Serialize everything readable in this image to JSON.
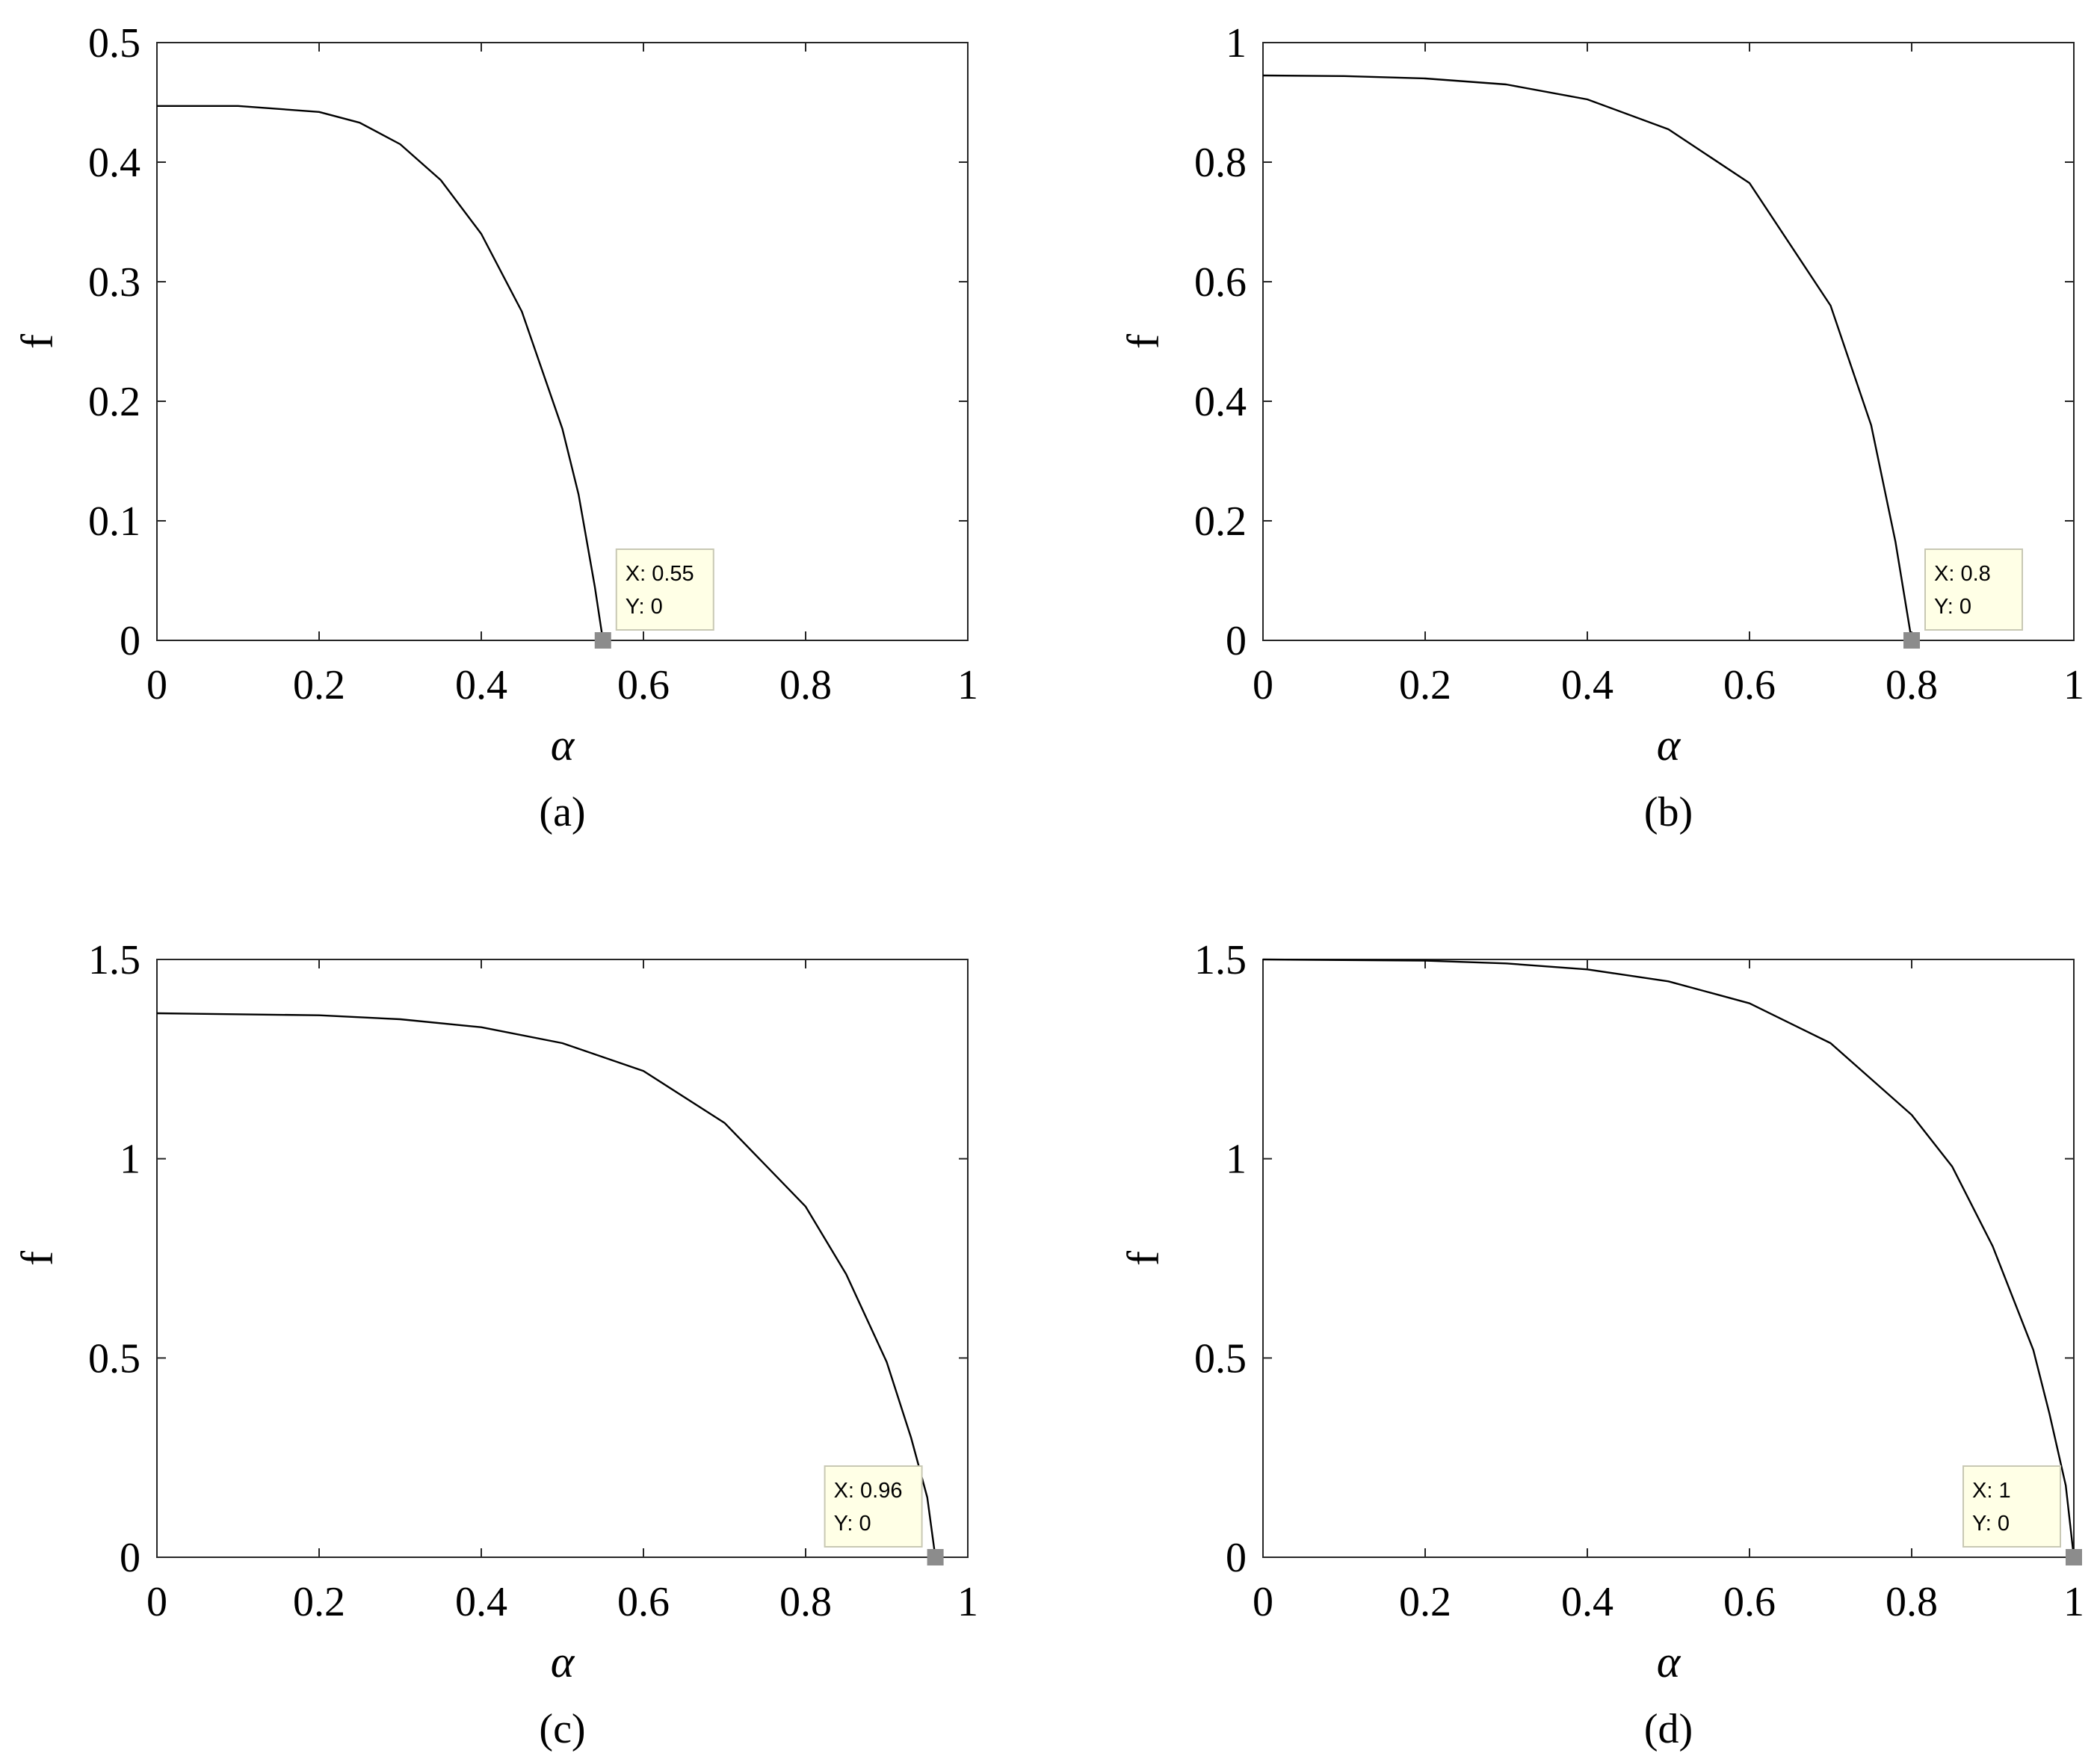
{
  "chart_data": [
    {
      "panel_label": "(a)",
      "type": "line",
      "xlabel": "α",
      "ylabel": "f",
      "xlim": [
        0,
        1
      ],
      "ylim": [
        0,
        0.5
      ],
      "xticks": [
        0,
        0.2,
        0.4,
        0.6,
        0.8,
        1
      ],
      "xtick_labels": [
        "0",
        "0.2",
        "0.4",
        "0.6",
        "0.8",
        "1"
      ],
      "yticks": [
        0,
        0.1,
        0.2,
        0.3,
        0.4,
        0.5
      ],
      "ytick_labels": [
        "0",
        "0.1",
        "0.2",
        "0.3",
        "0.4",
        "0.5"
      ],
      "grid": false,
      "color": "#000000",
      "x": [
        0,
        0.1,
        0.2,
        0.25,
        0.3,
        0.35,
        0.4,
        0.45,
        0.5,
        0.52,
        0.54,
        0.55
      ],
      "y": [
        0.447,
        0.447,
        0.442,
        0.433,
        0.415,
        0.385,
        0.34,
        0.275,
        0.177,
        0.122,
        0.045,
        0
      ],
      "datatip": {
        "x": 0.55,
        "y": 0,
        "lines": [
          "X: 0.55",
          "Y: 0"
        ]
      }
    },
    {
      "panel_label": "(b)",
      "type": "line",
      "xlabel": "α",
      "ylabel": "f",
      "xlim": [
        0,
        1
      ],
      "ylim": [
        0,
        1
      ],
      "xticks": [
        0,
        0.2,
        0.4,
        0.6,
        0.8,
        1
      ],
      "xtick_labels": [
        "0",
        "0.2",
        "0.4",
        "0.6",
        "0.8",
        "1"
      ],
      "yticks": [
        0,
        0.2,
        0.4,
        0.6,
        0.8,
        1
      ],
      "ytick_labels": [
        "0",
        "0.2",
        "0.4",
        "0.6",
        "0.8",
        "1"
      ],
      "grid": false,
      "color": "#000000",
      "x": [
        0,
        0.1,
        0.2,
        0.3,
        0.4,
        0.5,
        0.6,
        0.7,
        0.75,
        0.78,
        0.8
      ],
      "y": [
        0.945,
        0.944,
        0.94,
        0.93,
        0.905,
        0.855,
        0.765,
        0.56,
        0.36,
        0.165,
        0
      ],
      "datatip": {
        "x": 0.8,
        "y": 0,
        "lines": [
          "X: 0.8",
          "Y: 0"
        ]
      }
    },
    {
      "panel_label": "(c)",
      "type": "line",
      "xlabel": "α",
      "ylabel": "f",
      "xlim": [
        0,
        1
      ],
      "ylim": [
        0,
        1.5
      ],
      "xticks": [
        0,
        0.2,
        0.4,
        0.6,
        0.8,
        1
      ],
      "xtick_labels": [
        "0",
        "0.2",
        "0.4",
        "0.6",
        "0.8",
        "1"
      ],
      "yticks": [
        0,
        0.5,
        1,
        1.5
      ],
      "ytick_labels": [
        "0",
        "0.5",
        "1",
        "1.5"
      ],
      "grid": false,
      "color": "#000000",
      "x": [
        0,
        0.2,
        0.3,
        0.4,
        0.5,
        0.6,
        0.7,
        0.8,
        0.85,
        0.9,
        0.93,
        0.95,
        0.96
      ],
      "y": [
        1.365,
        1.36,
        1.35,
        1.33,
        1.29,
        1.22,
        1.09,
        0.88,
        0.71,
        0.49,
        0.3,
        0.15,
        0
      ],
      "datatip": {
        "x": 0.96,
        "y": 0,
        "lines": [
          "X: 0.96",
          "Y: 0"
        ]
      }
    },
    {
      "panel_label": "(d)",
      "type": "line",
      "xlabel": "α",
      "ylabel": "f",
      "xlim": [
        0,
        1
      ],
      "ylim": [
        0,
        1.5
      ],
      "xticks": [
        0,
        0.2,
        0.4,
        0.6,
        0.8,
        1
      ],
      "xtick_labels": [
        "0",
        "0.2",
        "0.4",
        "0.6",
        "0.8",
        "1"
      ],
      "yticks": [
        0,
        0.5,
        1,
        1.5
      ],
      "ytick_labels": [
        "0",
        "0.5",
        "1",
        "1.5"
      ],
      "grid": false,
      "color": "#000000",
      "x": [
        0,
        0.2,
        0.3,
        0.4,
        0.5,
        0.6,
        0.7,
        0.8,
        0.85,
        0.9,
        0.95,
        0.97,
        0.99,
        1.0
      ],
      "y": [
        1.5,
        1.497,
        1.49,
        1.475,
        1.445,
        1.39,
        1.29,
        1.11,
        0.98,
        0.78,
        0.52,
        0.36,
        0.18,
        0
      ],
      "datatip": {
        "x": 1,
        "y": 0,
        "lines": [
          "X: 1",
          "Y: 0"
        ]
      }
    }
  ],
  "colors": {
    "curve": "#000000",
    "axes": "#262626",
    "datatip_bg": "#ffffe6",
    "datatip_border": "#c8c8b4",
    "datatip_marker": "#8c8c8c"
  }
}
